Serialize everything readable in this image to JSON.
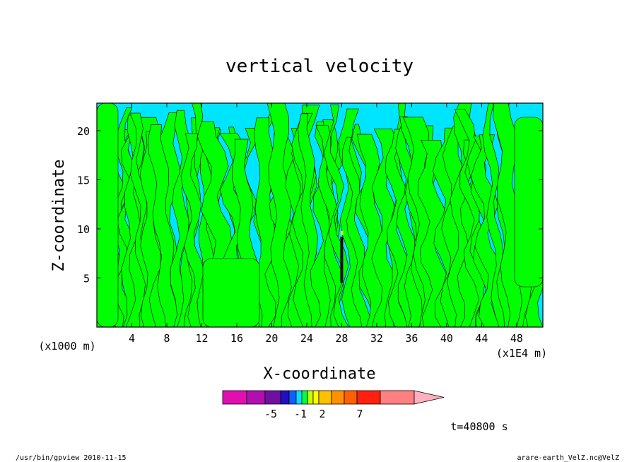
{
  "chart_data": {
    "type": "heatmap",
    "title": "vertical velocity",
    "xlabel": "X-coordinate",
    "ylabel": "Z-coordinate",
    "x_unit_label": "(x1000 m)",
    "x_unit_label_right": "(x1E4 m)",
    "x_ticks": [
      4,
      8,
      12,
      16,
      20,
      24,
      28,
      32,
      36,
      40,
      44,
      48
    ],
    "y_ticks": [
      5,
      10,
      15,
      20
    ],
    "xlim": [
      0,
      51
    ],
    "ylim": [
      0,
      22.8
    ],
    "colorbar": {
      "colors": [
        "#e010b0",
        "#b010b0",
        "#7010a0",
        "#2010c0",
        "#1060ff",
        "#00e0ff",
        "#00ff40",
        "#c8ff00",
        "#ffff00",
        "#ffc000",
        "#ff9000",
        "#ff6000",
        "#ff2010",
        "#ff8080",
        "#ffb0c0"
      ],
      "tick_labels": [
        "-5",
        "-1",
        "2",
        "7"
      ]
    },
    "time_label": "t=40800 s",
    "dominant_colors": {
      "background": "#00e5ff",
      "band": "#00ff00",
      "core": "#000000",
      "core_hint": "#ffff00"
    }
  },
  "footer": {
    "left": "/usr/bin/gpview  2010-11-15",
    "right": "arare-earth_VelZ.nc@VelZ"
  }
}
